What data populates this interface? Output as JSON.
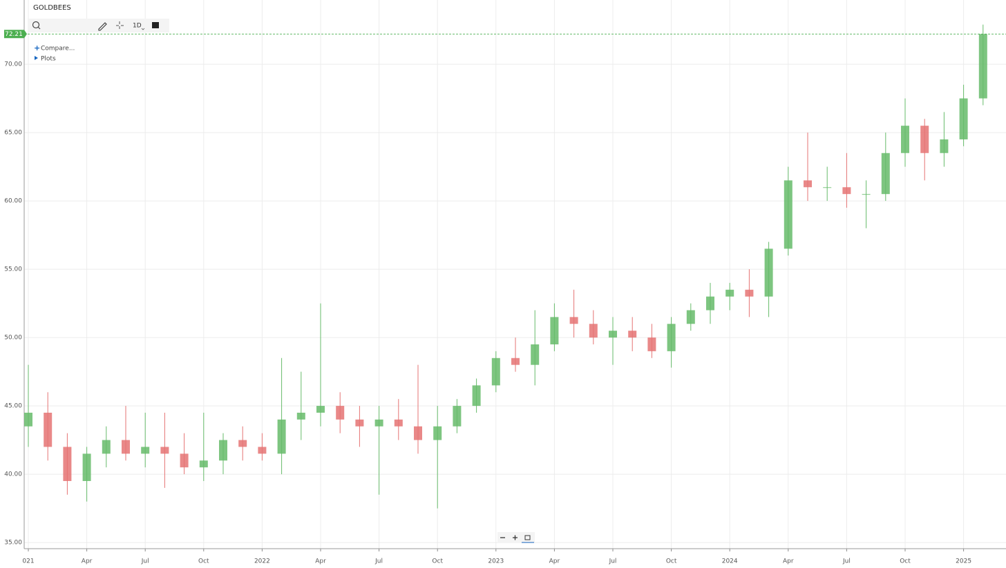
{
  "chart_data": {
    "type": "candlestick",
    "title": "GOLDBEES",
    "toolbar": {
      "interval": "1D",
      "compare": "Compare...",
      "plots": "Plots"
    },
    "x": [
      "2021-01",
      "2021-02",
      "2021-03",
      "2021-04",
      "2021-05",
      "2021-06",
      "2021-07",
      "2021-08",
      "2021-09",
      "2021-10",
      "2021-11",
      "2021-12",
      "2022-01",
      "2022-02",
      "2022-03",
      "2022-04",
      "2022-05",
      "2022-06",
      "2022-07",
      "2022-08",
      "2022-09",
      "2022-10",
      "2022-11",
      "2022-12",
      "2023-01",
      "2023-02",
      "2023-03",
      "2023-04",
      "2023-05",
      "2023-06",
      "2023-07",
      "2023-08",
      "2023-09",
      "2023-10",
      "2023-11",
      "2023-12",
      "2024-01",
      "2024-02",
      "2024-03",
      "2024-04",
      "2024-05",
      "2024-06",
      "2024-07",
      "2024-08",
      "2024-09",
      "2024-10",
      "2024-11",
      "2024-12",
      "2025-01",
      "2025-02"
    ],
    "open": [
      43.5,
      44.5,
      42,
      39.5,
      41.5,
      42.5,
      41.5,
      42,
      41.5,
      40.5,
      41,
      42.5,
      42,
      41.5,
      44,
      44.5,
      45,
      44,
      43.5,
      44,
      43.5,
      42.5,
      43.5,
      45,
      46.5,
      48.5,
      48,
      49.5,
      51.5,
      51,
      50,
      50.5,
      50,
      49,
      51,
      52,
      53,
      53.5,
      53,
      56.5,
      61.5,
      61,
      61,
      60.5,
      60.5,
      63.5,
      65.5,
      63.5,
      64.5,
      67.5
    ],
    "high": [
      48,
      46,
      43,
      42,
      43.5,
      45,
      44.5,
      44.5,
      43,
      44.5,
      43,
      43.5,
      43,
      48.5,
      47.5,
      52.5,
      46,
      45,
      45,
      45.5,
      48,
      45,
      45.5,
      47,
      49,
      50,
      52,
      52.5,
      53.5,
      52,
      51.5,
      51.5,
      51,
      51.5,
      52.5,
      54,
      54,
      55,
      57,
      62.5,
      65,
      62.5,
      63.5,
      61.5,
      65,
      67.5,
      66,
      66.5,
      68.5,
      72.9
    ],
    "low": [
      42,
      41,
      38.5,
      38,
      40.5,
      41,
      40.5,
      39,
      40,
      39.5,
      40,
      41,
      41,
      40,
      42.5,
      43.5,
      43,
      42,
      38.5,
      42.5,
      41.5,
      37.5,
      43,
      44.5,
      46,
      47.5,
      46.5,
      49,
      50,
      49.5,
      48,
      49,
      48.5,
      47.8,
      50.5,
      51,
      52,
      51.5,
      51.5,
      56,
      60,
      60,
      59.5,
      58,
      60,
      62.5,
      61.5,
      62.5,
      64,
      67
    ],
    "close": [
      44.5,
      42,
      39.5,
      41.5,
      42.5,
      41.5,
      42,
      41.5,
      40.5,
      41,
      42.5,
      42,
      41.5,
      44,
      44.5,
      45,
      44,
      43.5,
      44,
      43.5,
      42.5,
      43.5,
      45,
      46.5,
      48.5,
      48,
      49.5,
      51.5,
      51,
      50,
      50.5,
      50,
      49,
      51,
      52,
      53,
      53.5,
      53,
      56.5,
      61.5,
      61,
      61,
      60.5,
      60.5,
      63.5,
      65.5,
      63.5,
      64.5,
      67.5,
      72.21
    ],
    "up_color": "#66bb6a",
    "down_color": "#e57373",
    "last_price": 72.21,
    "last_price_color": "#4caf50",
    "ylim": [
      34.55,
      74.7
    ],
    "yticks": [
      {
        "value": 35,
        "label": "35.00"
      },
      {
        "value": 40,
        "label": "40.00"
      },
      {
        "value": 45,
        "label": "45.00"
      },
      {
        "value": 50,
        "label": "50.00"
      },
      {
        "value": 55,
        "label": "55.00"
      },
      {
        "value": 60,
        "label": "60.00"
      },
      {
        "value": 65,
        "label": "65.00"
      },
      {
        "value": 70,
        "label": "70.00"
      }
    ],
    "xticks": [
      {
        "value": "2021-01",
        "label": "021"
      },
      {
        "value": "2021-04",
        "label": "Apr"
      },
      {
        "value": "2021-07",
        "label": "Jul"
      },
      {
        "value": "2021-10",
        "label": "Oct"
      },
      {
        "value": "2022-01",
        "label": "2022"
      },
      {
        "value": "2022-04",
        "label": "Apr"
      },
      {
        "value": "2022-07",
        "label": "Jul"
      },
      {
        "value": "2022-10",
        "label": "Oct"
      },
      {
        "value": "2023-01",
        "label": "2023"
      },
      {
        "value": "2023-04",
        "label": "Apr"
      },
      {
        "value": "2023-07",
        "label": "Jul"
      },
      {
        "value": "2023-10",
        "label": "Oct"
      },
      {
        "value": "2024-01",
        "label": "2024"
      },
      {
        "value": "2024-04",
        "label": "Apr"
      },
      {
        "value": "2024-07",
        "label": "Jul"
      },
      {
        "value": "2024-10",
        "label": "Oct"
      },
      {
        "value": "2025-01",
        "label": "2025"
      }
    ],
    "grid": true
  }
}
